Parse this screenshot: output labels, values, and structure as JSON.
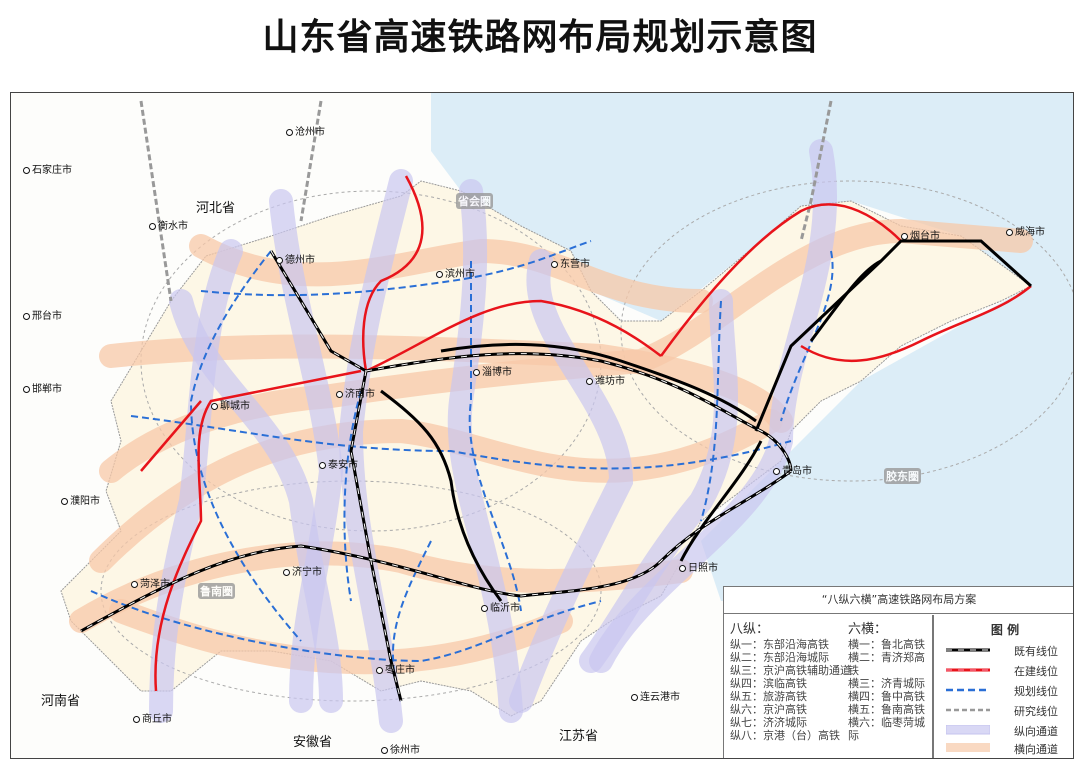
{
  "title": "山东省高速铁路网布局规划示意图",
  "provinces": [
    "河北省",
    "河南省",
    "安徽省",
    "江苏省"
  ],
  "cities": [
    "沧州市",
    "石家庄市",
    "衡水市",
    "邢台市",
    "邯郸市",
    "濮阳市",
    "商丘市",
    "徐州市",
    "连云港市",
    "德州市",
    "滨州市",
    "东营市",
    "烟台市",
    "威海市",
    "济南市",
    "淄博市",
    "潍坊市",
    "聊城市",
    "泰安市",
    "青岛市",
    "济宁市",
    "菏泽市",
    "临沂市",
    "日照市",
    "枣庄市"
  ],
  "zones": [
    "省会圈",
    "胶东圈",
    "鲁南圈"
  ],
  "legend": {
    "plan_title": "“八纵六横”高速铁路网布局方案",
    "vertical_header": "八纵：",
    "vertical": [
      "纵一：东部沿海高铁",
      "纵二：东部沿海城际",
      "纵三：京沪高铁辅助通道",
      "纵四：滨临高铁",
      "纵五：旅游高铁",
      "纵六：京沪高铁",
      "纵七：济济城际",
      "纵八：京港（台）高铁"
    ],
    "horizontal_header": "六横：",
    "horizontal": [
      "横一：鲁北高铁",
      "横二：青济郑高铁",
      "横三：济青城际",
      "横四：鲁中高铁",
      "横五：鲁南高铁",
      "横六：临枣菏城际"
    ],
    "key_title": "图  例",
    "key": [
      {
        "label": "既有线位",
        "color": "#000000"
      },
      {
        "label": "在建线位",
        "color": "#e8141b"
      },
      {
        "label": "规划线位",
        "color": "#2a6fd6"
      },
      {
        "label": "研究线位",
        "color": "#999999"
      },
      {
        "label": "纵向通道",
        "color": "#d9d8f5"
      },
      {
        "label": "横向通道",
        "color": "#f9d9c2"
      }
    ]
  },
  "colors": {
    "sea": "#dcedf7",
    "land": "#fdfbf3",
    "vertical_corridor": "#c9c6ef",
    "horizontal_corridor": "#f7c8a8"
  }
}
